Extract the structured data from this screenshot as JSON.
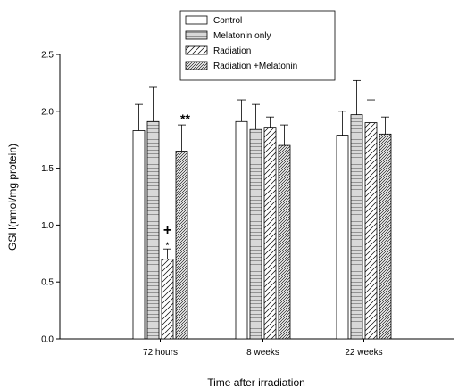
{
  "chart_data": {
    "type": "bar",
    "categories": [
      "72 hours",
      "8 weeks",
      "22 weeks"
    ],
    "series": [
      {
        "name": "Control",
        "values": [
          1.83,
          1.91,
          1.79
        ],
        "errors": [
          0.23,
          0.19,
          0.21
        ]
      },
      {
        "name": "Melatonin only",
        "values": [
          1.91,
          1.84,
          1.97
        ],
        "errors": [
          0.3,
          0.22,
          0.3
        ]
      },
      {
        "name": "Radiation",
        "values": [
          0.7,
          1.86,
          1.9
        ],
        "errors": [
          0.09,
          0.09,
          0.2
        ]
      },
      {
        "name": "Radiation +Melatonin",
        "values": [
          1.65,
          1.7,
          1.8
        ],
        "errors": [
          0.23,
          0.18,
          0.15
        ]
      }
    ],
    "xlabel": "Time after irradiation",
    "ylabel": "GSH(nmol/mg protein)",
    "ylim": [
      0,
      2.5
    ],
    "yticks": [
      "0.0",
      "0.5",
      "1.0",
      "1.5",
      "2.0",
      "2.5"
    ],
    "legend_position": "top-center",
    "grid": false,
    "annotations": [
      {
        "text": "+",
        "category": "72 hours",
        "series": "Radiation"
      },
      {
        "text": "*",
        "category": "72 hours",
        "series": "Radiation"
      },
      {
        "text": "**",
        "category": "72 hours",
        "series": "Radiation +Melatonin"
      }
    ],
    "patterns": [
      "open",
      "horizontal-lines",
      "sparse-diagonal",
      "dense-diagonal"
    ]
  }
}
